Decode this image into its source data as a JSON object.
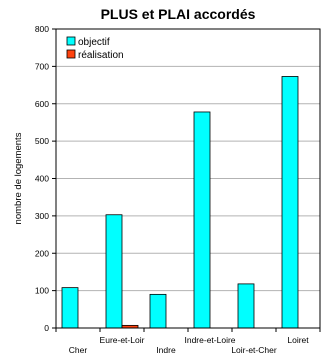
{
  "chart_data": {
    "type": "bar",
    "title": "PLUS et PLAI accordés",
    "xlabel": "",
    "ylabel": "nombre de logements",
    "categories": [
      "Cher",
      "Eure-et-Loir",
      "Indre",
      "Indre-et-Loire",
      "Loir-et-Cher",
      "Loiret"
    ],
    "series": [
      {
        "name": "objectif",
        "color": "#00ffff",
        "values": [
          108,
          303,
          90,
          578,
          118,
          673
        ]
      },
      {
        "name": "réalisation",
        "color": "#ff420e",
        "values": [
          0,
          7,
          0,
          0,
          0,
          0
        ]
      }
    ],
    "ylim": [
      0,
      800
    ],
    "yticks": [
      0,
      100,
      200,
      300,
      400,
      500,
      600,
      700,
      800
    ],
    "grid": true,
    "legend": "top-left"
  }
}
